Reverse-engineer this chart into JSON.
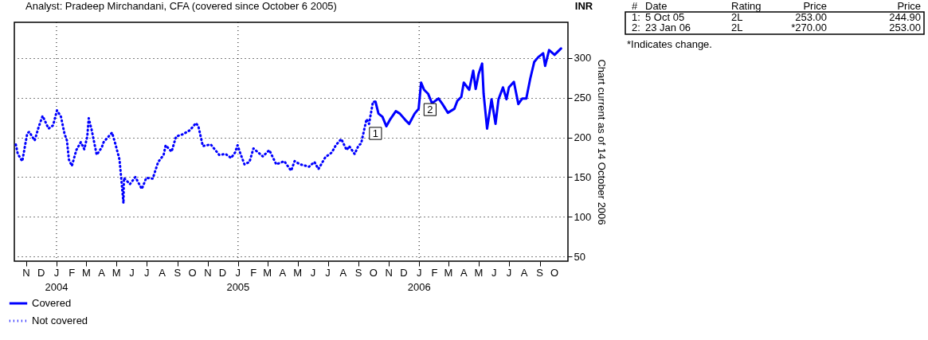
{
  "chart_data": {
    "type": "line",
    "title": "Analyst: Pradeep Mirchandani, CFA (covered since October 6 2005)",
    "ylabel": "Chart current as of 14 October 2006",
    "series": [
      {
        "name": "Covered",
        "color": "#0000ff",
        "line_style": "solid",
        "x": [
          "2005-10-05",
          "2005-10-11",
          "2005-10-19",
          "2005-10-27",
          "2005-11-04",
          "2005-11-15",
          "2005-11-23",
          "2005-12-04",
          "2005-12-12",
          "2005-12-23",
          "2005-12-31",
          "2006-01-05",
          "2006-01-11",
          "2006-01-19",
          "2006-01-27",
          "2006-02-09",
          "2006-02-17",
          "2006-02-28",
          "2006-03-13",
          "2006-03-19",
          "2006-03-27",
          "2006-04-01",
          "2006-04-12",
          "2006-04-20",
          "2006-04-25",
          "2006-05-01",
          "2006-05-08",
          "2006-05-11",
          "2006-05-18",
          "2006-05-27",
          "2006-06-04",
          "2006-06-10",
          "2006-06-19",
          "2006-06-26",
          "2006-07-01",
          "2006-07-11",
          "2006-07-20",
          "2006-07-28",
          "2006-08-05",
          "2006-08-13",
          "2006-08-21",
          "2006-08-29",
          "2006-09-08",
          "2006-09-12",
          "2006-09-20",
          "2006-10-01",
          "2006-10-14"
        ],
        "values": [
          245,
          230,
          226,
          214,
          223,
          233,
          230,
          222,
          217,
          230,
          236,
          269,
          260,
          255,
          243,
          249,
          242,
          231,
          236,
          246,
          251,
          269,
          260,
          284,
          261,
          280,
          293,
          255,
          211,
          248,
          217,
          248,
          263,
          248,
          263,
          270,
          242,
          249,
          249,
          274,
          295,
          301,
          306,
          290,
          310,
          304,
          312
        ]
      },
      {
        "name": "Not covered",
        "color": "#0000ff",
        "line_style": "dotted",
        "x": [
          "2003-10-11",
          "2003-10-15",
          "2003-10-24",
          "2003-11-03",
          "2003-11-07",
          "2003-11-18",
          "2003-11-26",
          "2003-12-04",
          "2003-12-16",
          "2003-12-25",
          "2004-01-02",
          "2004-01-10",
          "2004-01-17",
          "2004-01-22",
          "2004-01-26",
          "2004-02-01",
          "2004-02-10",
          "2004-02-19",
          "2004-02-26",
          "2004-03-03",
          "2004-03-06",
          "2004-03-12",
          "2004-03-22",
          "2004-04-01",
          "2004-04-05",
          "2004-04-22",
          "2004-04-29",
          "2004-05-07",
          "2004-05-15",
          "2004-05-16",
          "2004-05-28",
          "2004-06-08",
          "2004-06-21",
          "2004-06-30",
          "2004-07-13",
          "2004-07-24",
          "2004-08-04",
          "2004-08-08",
          "2004-08-20",
          "2004-08-29",
          "2004-09-12",
          "2004-09-26",
          "2004-10-08",
          "2004-10-13",
          "2004-10-22",
          "2004-11-07",
          "2004-11-24",
          "2004-12-07",
          "2004-12-18",
          "2004-12-26",
          "2004-12-31",
          "2005-01-06",
          "2005-01-14",
          "2005-01-24",
          "2005-02-01",
          "2005-02-20",
          "2005-03-05",
          "2005-03-19",
          "2005-04-04",
          "2005-04-18",
          "2005-04-25",
          "2005-05-06",
          "2005-05-24",
          "2005-06-04",
          "2005-06-12",
          "2005-06-26",
          "2005-07-09",
          "2005-07-17",
          "2005-07-28",
          "2005-08-08",
          "2005-08-13",
          "2005-08-24",
          "2005-09-01",
          "2005-09-06",
          "2005-09-17",
          "2005-09-22",
          "2005-09-30",
          "2005-10-05"
        ],
        "values": [
          191,
          179,
          170,
          205,
          207,
          196,
          213,
          227,
          211,
          215,
          234,
          226,
          205,
          196,
          172,
          164,
          184,
          194,
          185,
          201,
          224,
          209,
          178,
          187,
          194,
          206,
          191,
          172,
          117,
          149,
          141,
          150,
          135,
          149,
          148,
          169,
          178,
          190,
          182,
          201,
          204,
          209,
          218,
          214,
          189,
          191,
          178,
          179,
          174,
          181,
          190,
          179,
          166,
          169,
          186,
          176,
          184,
          166,
          170,
          158,
          170,
          166,
          163,
          169,
          160,
          175,
          181,
          190,
          198,
          184,
          189,
          179,
          190,
          192,
          223,
          217,
          245,
          245
        ]
      }
    ],
    "xlim": [
      "2003-10-08",
      "2006-10-28"
    ],
    "ylim": [
      44,
      345
    ],
    "xticks": [
      {
        "value": "2003-11-01",
        "label": "N"
      },
      {
        "value": "2003-12-01",
        "label": "D"
      },
      {
        "value": "2004-01-01",
        "label": "J\n2004"
      },
      {
        "value": "2004-02-01",
        "label": "F"
      },
      {
        "value": "2004-03-01",
        "label": "M"
      },
      {
        "value": "2004-04-01",
        "label": "A"
      },
      {
        "value": "2004-05-01",
        "label": "M"
      },
      {
        "value": "2004-06-01",
        "label": "J"
      },
      {
        "value": "2004-07-01",
        "label": "J"
      },
      {
        "value": "2004-08-01",
        "label": "A"
      },
      {
        "value": "2004-09-01",
        "label": "S"
      },
      {
        "value": "2004-10-01",
        "label": "O"
      },
      {
        "value": "2004-11-01",
        "label": "N"
      },
      {
        "value": "2004-12-01",
        "label": "D"
      },
      {
        "value": "2005-01-01",
        "label": "J\n2005"
      },
      {
        "value": "2005-02-01",
        "label": "F"
      },
      {
        "value": "2005-03-01",
        "label": "M"
      },
      {
        "value": "2005-04-01",
        "label": "A"
      },
      {
        "value": "2005-05-01",
        "label": "M"
      },
      {
        "value": "2005-06-01",
        "label": "J"
      },
      {
        "value": "2005-07-01",
        "label": "J"
      },
      {
        "value": "2005-08-01",
        "label": "A"
      },
      {
        "value": "2005-09-01",
        "label": "S"
      },
      {
        "value": "2005-10-01",
        "label": "O"
      },
      {
        "value": "2005-11-01",
        "label": "N"
      },
      {
        "value": "2005-12-01",
        "label": "D"
      },
      {
        "value": "2006-01-01",
        "label": "J\n2006"
      },
      {
        "value": "2006-02-01",
        "label": "F"
      },
      {
        "value": "2006-03-01",
        "label": "M"
      },
      {
        "value": "2006-04-01",
        "label": "A"
      },
      {
        "value": "2006-05-01",
        "label": "M"
      },
      {
        "value": "2006-06-01",
        "label": "J"
      },
      {
        "value": "2006-07-01",
        "label": "J"
      },
      {
        "value": "2006-08-01",
        "label": "A"
      },
      {
        "value": "2006-09-01",
        "label": "S"
      },
      {
        "value": "2006-10-01",
        "label": "O"
      }
    ],
    "yticks": [
      50,
      100,
      150,
      200,
      250,
      300
    ],
    "grid": "y",
    "ref_lines": [
      {
        "axis": "x",
        "value": "2004-01-01",
        "line_style": "dotted"
      },
      {
        "axis": "x",
        "value": "2005-01-01",
        "line_style": "dotted"
      },
      {
        "axis": "x",
        "value": "2006-01-01",
        "line_style": "dotted"
      }
    ],
    "legend": "bottom left",
    "annotations": [
      "#",
      "Date",
      "Rating",
      "Price",
      "Price",
      "1:",
      "5 Oct 05",
      "2L",
      "253.00",
      "244.90",
      "2:",
      "23 Jan 06",
      "2L",
      "*270.00",
      "253.00",
      "*Indicates change.",
      "INR",
      {
        "text": "1",
        "x": "2005-10-05",
        "y": 205
      },
      {
        "text": "2",
        "x": "2006-01-23",
        "y": 235
      }
    ]
  }
}
